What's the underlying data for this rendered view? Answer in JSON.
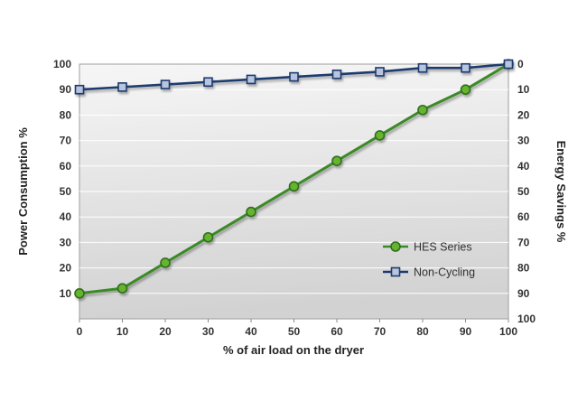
{
  "chart_data": {
    "type": "line",
    "xlabel": "% of air load on the dryer",
    "ylabel_left": "Power Consumption %",
    "ylabel_right": "Energy Savings %",
    "x": [
      0,
      10,
      20,
      30,
      40,
      50,
      60,
      70,
      80,
      90,
      100
    ],
    "series": [
      {
        "name": "HES Series",
        "line_color": "#3a8a28",
        "marker": "circle",
        "marker_fill": "#67b32e",
        "marker_stroke": "#2d6e1e",
        "values": [
          10,
          12,
          22,
          32,
          42,
          52,
          62,
          72,
          82,
          90,
          100
        ]
      },
      {
        "name": "Non-Cycling",
        "line_color": "#1f3a6e",
        "marker": "square",
        "marker_fill": "#b9c4de",
        "marker_stroke": "#1f3a6e",
        "values": [
          90,
          91,
          92,
          93,
          94,
          95,
          96,
          97,
          98.5,
          98.5,
          100
        ]
      }
    ],
    "left_axis_ticks": [
      100,
      90,
      80,
      70,
      60,
      50,
      40,
      30,
      20,
      10
    ],
    "right_axis_ticks": [
      0,
      10,
      20,
      30,
      40,
      50,
      60,
      70,
      80,
      90,
      100
    ],
    "x_ticks": [
      0,
      10,
      20,
      30,
      40,
      50,
      60,
      70,
      80,
      90,
      100
    ],
    "xlim": [
      0,
      100
    ],
    "ylim": [
      0,
      100
    ],
    "grid": "horizontal",
    "legend_position": "inside-right",
    "colors": {
      "plot_bg_top": "#f5f5f5",
      "plot_bg_bottom": "#d2d2d2",
      "gridline": "#ffffff",
      "plot_border": "#9e9e9e",
      "tick_text": "#333333"
    }
  }
}
